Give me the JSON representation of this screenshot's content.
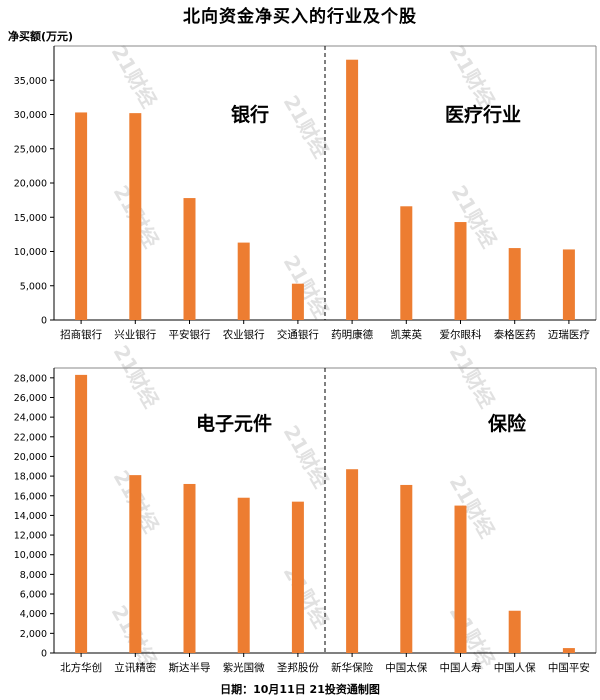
{
  "title": "北向资金净买入的行业及个股",
  "footer": "日期：10月11日 21投资通制图",
  "watermark": "21财经",
  "colors": {
    "bar": "#ED7D31",
    "axis": "#000000",
    "divider": "#000000"
  },
  "chart_data": [
    {
      "type": "bar",
      "ylabel": "净买额(万元)",
      "ylim": [
        0,
        40000
      ],
      "yticks": [
        0,
        5000,
        10000,
        15000,
        20000,
        25000,
        30000,
        35000
      ],
      "groups": [
        "银行",
        "医疗行业"
      ],
      "categories": [
        "招商银行",
        "兴业银行",
        "平安银行",
        "农业银行",
        "交通银行",
        "药明康德",
        "凯莱英",
        "爱尔眼科",
        "泰格医药",
        "迈瑞医疗"
      ],
      "values": [
        30300,
        30200,
        17800,
        11300,
        5300,
        38000,
        16600,
        14300,
        10500,
        10300
      ]
    },
    {
      "type": "bar",
      "ylim": [
        0,
        29000
      ],
      "yticks": [
        0,
        2000,
        4000,
        6000,
        8000,
        10000,
        12000,
        14000,
        16000,
        18000,
        20000,
        22000,
        24000,
        26000,
        28000
      ],
      "groups": [
        "电子元件",
        "保险"
      ],
      "categories": [
        "北方华创",
        "立讯精密",
        "斯达半导",
        "紫光国微",
        "圣邦股份",
        "新华保险",
        "中国太保",
        "中国人寿",
        "中国人保",
        "中国平安"
      ],
      "values": [
        28300,
        18100,
        17200,
        15800,
        15400,
        18700,
        17100,
        15000,
        4300,
        500
      ]
    }
  ]
}
